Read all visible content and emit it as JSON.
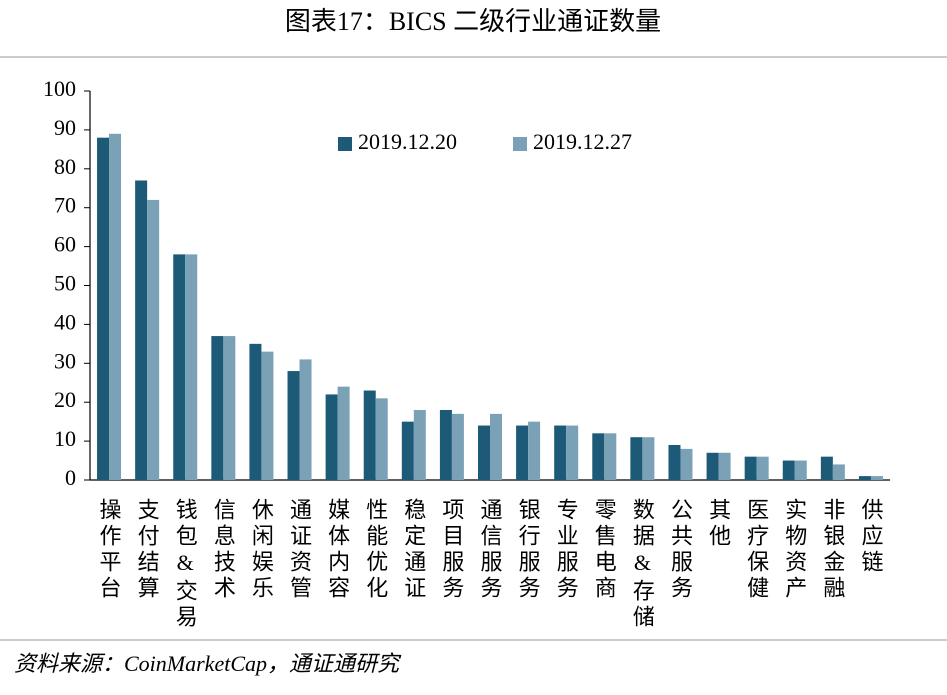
{
  "chart_data": {
    "type": "bar",
    "title": "图表17：BICS 二级行业通证数量",
    "source": "资料来源：CoinMarketCap，通证通研究",
    "categories": [
      "操作平台",
      "支付结算",
      "钱包&交易",
      "信息技术",
      "休闲娱乐",
      "通证资管",
      "媒体内容",
      "性能优化",
      "稳定通证",
      "项目服务",
      "通信服务",
      "银行服务",
      "专业服务",
      "零售电商",
      "数据&存储",
      "公共服务",
      "其他",
      "医疗保健",
      "实物资产",
      "非银金融",
      "供应链"
    ],
    "series": [
      {
        "name": "2019.12.20",
        "color": "#1c5a78",
        "values": [
          88,
          77,
          58,
          37,
          35,
          28,
          22,
          23,
          15,
          18,
          14,
          14,
          14,
          12,
          11,
          9,
          7,
          6,
          5,
          6,
          1
        ]
      },
      {
        "name": "2019.12.27",
        "color": "#7ba1b6",
        "values": [
          89,
          72,
          58,
          37,
          33,
          31,
          24,
          21,
          18,
          17,
          17,
          15,
          14,
          12,
          11,
          8,
          7,
          6,
          5,
          4,
          1
        ]
      }
    ],
    "ylim": [
      0,
      100
    ],
    "yticks": [
      0,
      10,
      20,
      30,
      40,
      50,
      60,
      70,
      80,
      90,
      100
    ],
    "grid": false,
    "legend": "top"
  }
}
